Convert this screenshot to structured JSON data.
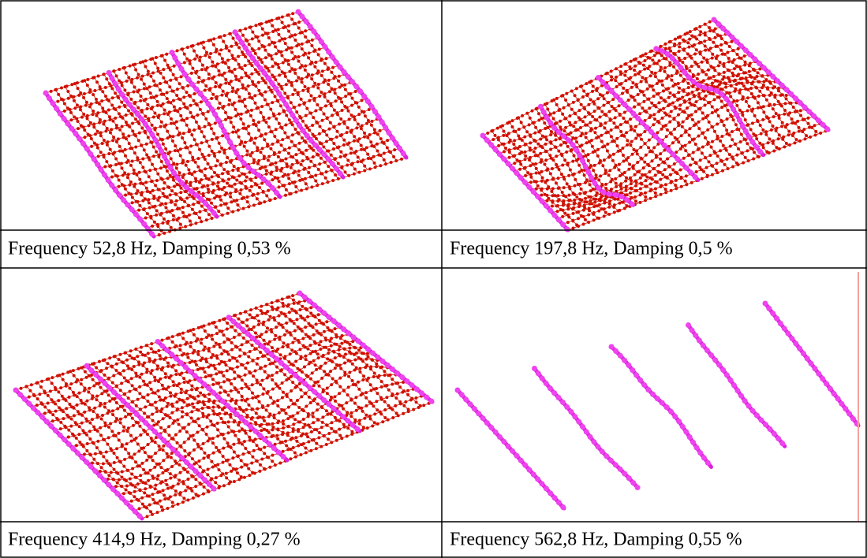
{
  "table": {
    "rows": [
      [
        "Frequency 52,8 Hz, Damping 0,53 %",
        "Frequency 197,8 Hz, Damping 0,5 %"
      ],
      [
        "Frequency 414,9 Hz, Damping 0,27 %",
        "Frequency 562,8 Hz, Damping 0,55 %"
      ]
    ]
  }
}
